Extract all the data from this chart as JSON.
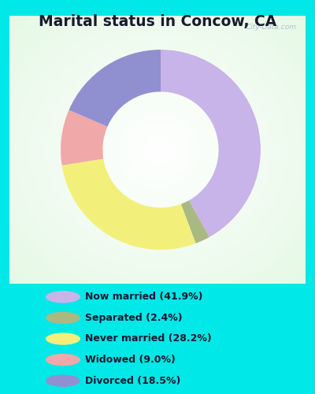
{
  "title": "Marital status in Concow, CA",
  "categories": [
    "Now married",
    "Separated",
    "Never married",
    "Widowed",
    "Divorced"
  ],
  "values": [
    41.9,
    2.4,
    28.2,
    9.0,
    18.5
  ],
  "colors": [
    "#c8b4e8",
    "#aab882",
    "#f2f07a",
    "#f0a8a8",
    "#9090d0"
  ],
  "legend_labels": [
    "Now married (41.9%)",
    "Separated (2.4%)",
    "Never married (28.2%)",
    "Widowed (9.0%)",
    "Divorced (18.5%)"
  ],
  "background_cyan": "#00e8e8",
  "title_fontsize": 13.5,
  "watermark": "City-Data.com",
  "fig_width": 4.0,
  "fig_height": 5.0
}
